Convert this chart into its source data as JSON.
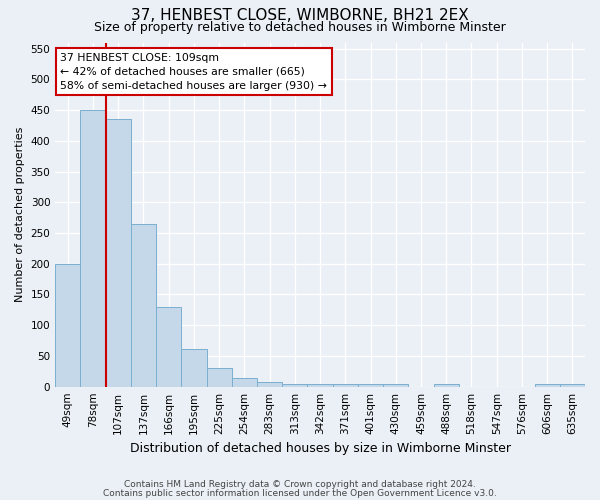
{
  "title": "37, HENBEST CLOSE, WIMBORNE, BH21 2EX",
  "subtitle": "Size of property relative to detached houses in Wimborne Minster",
  "xlabel": "Distribution of detached houses by size in Wimborne Minster",
  "ylabel": "Number of detached properties",
  "footer1": "Contains HM Land Registry data © Crown copyright and database right 2024.",
  "footer2": "Contains public sector information licensed under the Open Government Licence v3.0.",
  "bar_labels": [
    "49sqm",
    "78sqm",
    "107sqm",
    "137sqm",
    "166sqm",
    "195sqm",
    "225sqm",
    "254sqm",
    "283sqm",
    "313sqm",
    "342sqm",
    "371sqm",
    "401sqm",
    "430sqm",
    "459sqm",
    "488sqm",
    "518sqm",
    "547sqm",
    "576sqm",
    "606sqm",
    "635sqm"
  ],
  "bar_heights": [
    200,
    450,
    435,
    265,
    130,
    62,
    30,
    14,
    7,
    5,
    5,
    5,
    5,
    5,
    0,
    5,
    0,
    0,
    0,
    5,
    5
  ],
  "bar_color": "#c5d8ea",
  "bar_edge_color": "#7aaed0",
  "vline_x_index": 2,
  "vline_color": "#cc0000",
  "annotation_text": "37 HENBEST CLOSE: 109sqm\n← 42% of detached houses are smaller (665)\n58% of semi-detached houses are larger (930) →",
  "annotation_box_color": "#ffffff",
  "annotation_box_edge": "#cc0000",
  "ylim": [
    0,
    560
  ],
  "yticks": [
    0,
    50,
    100,
    150,
    200,
    250,
    300,
    350,
    400,
    450,
    500,
    550
  ],
  "background_color": "#eaf0f6",
  "plot_bg_color": "#eaf0f6",
  "grid_color": "#ffffff",
  "title_fontsize": 11,
  "subtitle_fontsize": 9,
  "ylabel_fontsize": 8,
  "xlabel_fontsize": 9,
  "tick_fontsize": 7.5,
  "footer_fontsize": 6.5
}
